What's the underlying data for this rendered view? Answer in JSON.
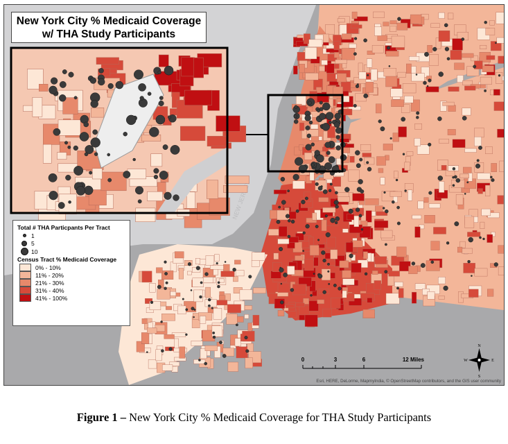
{
  "title": {
    "line1": "New York City % Medicaid Coverage",
    "line2": "w/ THA Study Participants"
  },
  "legend": {
    "participants_title": "Total # THA Particpants Per Tract",
    "participant_sizes": [
      {
        "label": "1",
        "value": 1
      },
      {
        "label": "5",
        "value": 5
      },
      {
        "label": "10",
        "value": 10
      }
    ],
    "coverage_title": "Census Tract % Medicaid Coverage",
    "coverage_classes": [
      {
        "label": "0% - 10%",
        "color": "#fde7d6"
      },
      {
        "label": "11% - 20%",
        "color": "#f3b699"
      },
      {
        "label": "21% - 30%",
        "color": "#e7896b"
      },
      {
        "label": "31% - 40%",
        "color": "#d64a3a"
      },
      {
        "label": "41% - 100%",
        "color": "#c00f12"
      }
    ]
  },
  "scale_bar": {
    "ticks": [
      "0",
      "3",
      "6",
      "12 Miles"
    ],
    "tick_values": [
      0,
      3,
      6,
      12
    ]
  },
  "north_arrow": {
    "n": "N",
    "s": "S",
    "e": "E",
    "w": "W"
  },
  "water_labels": [
    "NEW JERSEY"
  ],
  "attribution": "Esri, HERE, DeLorme, MapmyIndia, © OpenStreetMap contributors, and the GIS user community",
  "colors": {
    "land_bg": "#c9c9cb",
    "water": "#a9a9ab",
    "dot": "#3a3a3a"
  },
  "caption": {
    "label": "Figure 1 –",
    "text": " New York City % Medicaid Coverage for THA Study Participants"
  }
}
